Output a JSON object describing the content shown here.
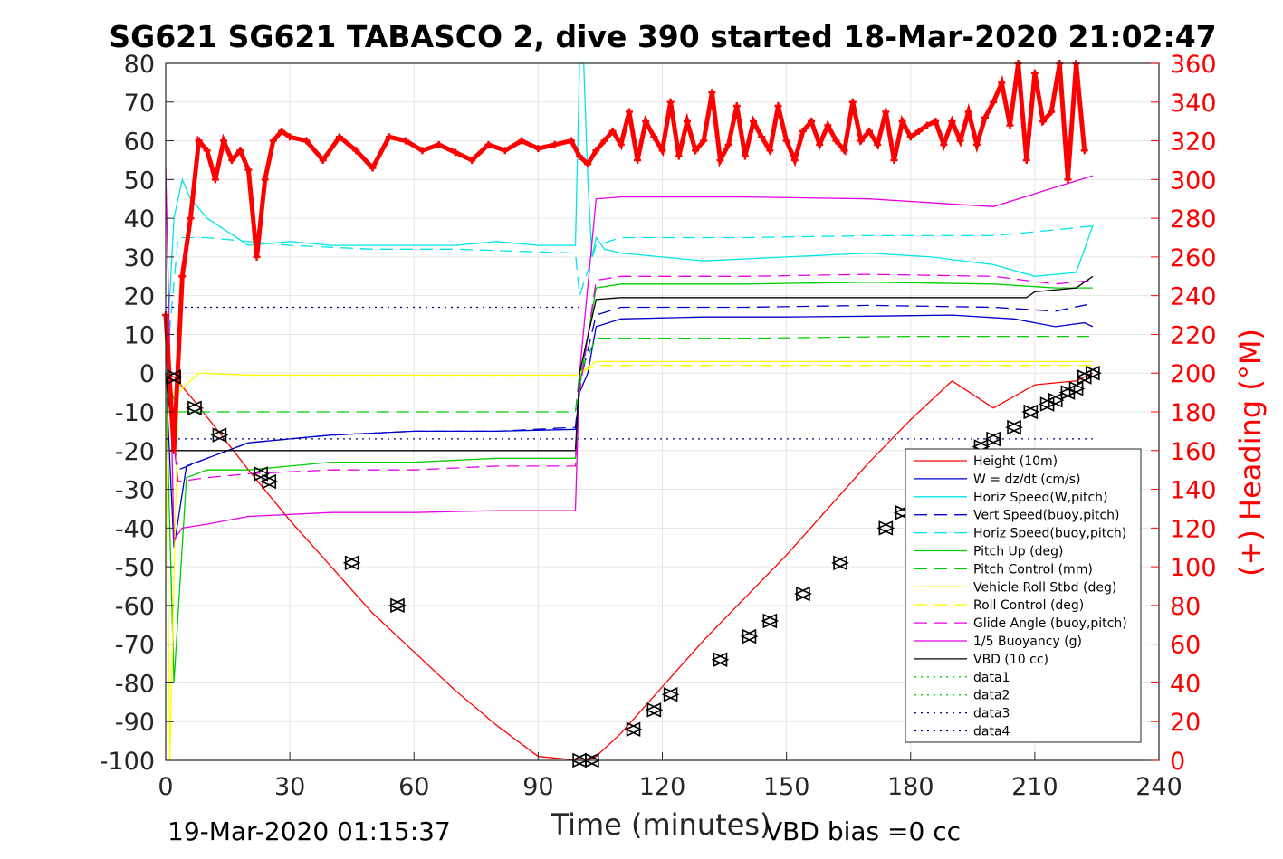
{
  "chart_data": {
    "type": "line",
    "title": "SG621 SG621 TABASCO 2, dive 390 started 18-Mar-2020 21:02:47",
    "xlabel": "Time (minutes)",
    "ylabel_right": "(+) Heading (°M)",
    "footer_left": "19-Mar-2020 01:15:37",
    "footer_right": "VBD bias =0 cc",
    "xlim": [
      0,
      240
    ],
    "ylim_left": [
      -100,
      80
    ],
    "ylim_right": [
      0,
      360
    ],
    "x_ticks": [
      "0",
      "30",
      "60",
      "90",
      "120",
      "150",
      "180",
      "210",
      "240"
    ],
    "y_ticks_left": [
      "80",
      "70",
      "60",
      "50",
      "40",
      "30",
      "20",
      "10",
      "0",
      "-10",
      "-20",
      "-30",
      "-40",
      "-50",
      "-60",
      "-70",
      "-80",
      "-90",
      "-100"
    ],
    "y_ticks_right": [
      "360",
      "340",
      "320",
      "300",
      "280",
      "260",
      "240",
      "220",
      "200",
      "180",
      "160",
      "140",
      "120",
      "100",
      "80",
      "60",
      "40",
      "20",
      "0"
    ],
    "grid": true,
    "legend_placement": "bottom-right",
    "colors": {
      "red": "#ff0000",
      "blue": "#0000cc",
      "cyan": "#00e5e5",
      "green": "#00cc00",
      "yellow": "#ffff00",
      "magenta": "#e500e5",
      "black": "#000000",
      "navy": "#000080"
    },
    "series": [
      {
        "name": "Height (10m)",
        "color": "#ff0000",
        "style": "solid",
        "x": [
          0,
          2,
          6,
          12,
          20,
          30,
          40,
          50,
          60,
          70,
          80,
          90,
          100,
          102,
          104,
          110,
          120,
          130,
          140,
          150,
          160,
          170,
          180,
          190,
          200,
          210,
          220,
          224
        ],
        "y": [
          0,
          -1,
          -6,
          -14,
          -25,
          -38,
          -50,
          -62,
          -72,
          -82,
          -91,
          -99,
          -100,
          -100,
          -99,
          -93,
          -81,
          -69,
          -58,
          -47,
          -35,
          -23,
          -12,
          -2,
          -9,
          -3,
          -2,
          0
        ]
      },
      {
        "name": "W = dz/dt (cm/s)",
        "color": "#0000cc",
        "style": "solid",
        "x": [
          0,
          2,
          5,
          10,
          20,
          30,
          40,
          60,
          80,
          99,
          100,
          102,
          104,
          110,
          130,
          150,
          170,
          190,
          205,
          215,
          222,
          224
        ],
        "y": [
          0,
          -45,
          -24,
          -22,
          -18,
          -17,
          -16,
          -15,
          -15,
          -14.5,
          -5,
          0,
          12,
          14,
          14.5,
          14.5,
          14.7,
          15,
          14,
          12,
          13,
          12
        ]
      },
      {
        "name": "Horiz Speed(W,pitch)",
        "color": "#00e5e5",
        "style": "solid",
        "x": [
          0,
          2,
          4,
          6,
          10,
          20,
          30,
          40,
          50,
          60,
          70,
          80,
          90,
          99,
          100,
          101,
          102,
          103,
          104,
          106,
          110,
          130,
          150,
          170,
          185,
          200,
          210,
          220,
          224
        ],
        "y": [
          0,
          40,
          50,
          45,
          40,
          33,
          34,
          33,
          33,
          33,
          33,
          34,
          33,
          33,
          80,
          80,
          50,
          30,
          35,
          32,
          31,
          29,
          30,
          31,
          30,
          28,
          25,
          26,
          38
        ]
      },
      {
        "name": "Vert Speed(buoy,pitch)",
        "color": "#0000cc",
        "style": "dash",
        "x": [
          0,
          3,
          10,
          20,
          40,
          60,
          80,
          99,
          100,
          104,
          110,
          140,
          170,
          200,
          215,
          224
        ],
        "y": [
          0,
          -25,
          -22,
          -18,
          -16,
          -15,
          -15,
          -14,
          -3,
          15,
          17,
          17,
          17.5,
          17,
          16,
          18
        ]
      },
      {
        "name": "Horiz Speed(buoy,pitch)",
        "color": "#00e5e5",
        "style": "dash",
        "x": [
          0,
          3,
          10,
          30,
          50,
          70,
          99,
          100,
          104,
          110,
          140,
          170,
          200,
          215,
          224
        ],
        "y": [
          0,
          35,
          35,
          33,
          32,
          32,
          31,
          20,
          33,
          35,
          35,
          35.5,
          35.5,
          37,
          38
        ]
      },
      {
        "name": "Pitch Up (deg)",
        "color": "#00cc00",
        "style": "solid",
        "x": [
          0,
          2,
          5,
          10,
          20,
          30,
          40,
          60,
          80,
          99,
          100,
          104,
          110,
          140,
          170,
          200,
          215,
          224
        ],
        "y": [
          0,
          -80,
          -27,
          -25,
          -25,
          -24,
          -23,
          -23,
          -22,
          -22,
          -3,
          22,
          23,
          23,
          23.5,
          23,
          22,
          22
        ]
      },
      {
        "name": "Pitch Control (mm)",
        "color": "#00cc00",
        "style": "dash",
        "x": [
          0,
          3,
          30,
          60,
          99,
          100,
          104,
          140,
          180,
          224
        ],
        "y": [
          0,
          -10,
          -10,
          -10,
          -10,
          0,
          9,
          9,
          9.5,
          9.5
        ]
      },
      {
        "name": "Vehicle Roll Stbd (deg)",
        "color": "#ffff00",
        "style": "solid",
        "x": [
          0,
          1,
          3,
          8,
          20,
          40,
          60,
          80,
          99,
          100,
          104,
          110,
          130,
          150,
          170,
          190,
          210,
          224
        ],
        "y": [
          0,
          -100,
          -5,
          0,
          -0.5,
          -0.5,
          -0.5,
          -0.5,
          -0.5,
          0,
          3,
          3,
          3,
          3,
          3,
          3,
          3,
          3
        ]
      },
      {
        "name": "Roll Control (deg)",
        "color": "#ffff00",
        "style": "dash",
        "x": [
          0,
          2,
          5,
          20,
          40,
          60,
          80,
          99,
          100,
          104,
          140,
          180,
          224
        ],
        "y": [
          0,
          -5,
          -1,
          -1,
          -1,
          -1,
          -1,
          -1,
          0,
          2,
          2,
          2,
          2
        ]
      },
      {
        "name": "Glide Angle (buoy,pitch)",
        "color": "#e500e5",
        "style": "dash",
        "x": [
          0,
          3,
          10,
          20,
          40,
          60,
          80,
          99,
          100,
          104,
          110,
          140,
          170,
          200,
          215,
          224
        ],
        "y": [
          0,
          -28,
          -27,
          -26,
          -25,
          -25,
          -24,
          -24,
          -5,
          24,
          25,
          25,
          25.5,
          25,
          23,
          24
        ]
      },
      {
        "name": "1/5 Buoyancy (g)",
        "color": "#e500e5",
        "style": "solid",
        "x": [
          0,
          2,
          4,
          10,
          20,
          40,
          60,
          80,
          99,
          100,
          104,
          110,
          140,
          170,
          200,
          215,
          224
        ],
        "y": [
          53,
          -43,
          -40,
          -39,
          -37,
          -36,
          -36,
          -35.5,
          -35.5,
          0,
          45,
          45.5,
          45.5,
          45,
          43,
          48,
          51
        ]
      },
      {
        "name": "VBD (10 cc)",
        "color": "#000000",
        "style": "solid",
        "x": [
          0,
          2,
          4,
          99,
          100,
          104,
          110,
          140,
          170,
          200,
          208,
          210,
          220,
          224
        ],
        "y": [
          0,
          -20,
          -20,
          -20,
          0,
          19,
          19.5,
          19.5,
          19.5,
          19.5,
          19.5,
          21,
          22,
          25
        ]
      },
      {
        "name": "data1",
        "color": "#00cc00",
        "style": "dot",
        "x": [],
        "y": []
      },
      {
        "name": "data2",
        "color": "#00cc00",
        "style": "dot",
        "x": [],
        "y": []
      },
      {
        "name": "data3",
        "color": "#000080",
        "style": "dot",
        "x": [
          0,
          100
        ],
        "y": [
          17,
          17
        ]
      },
      {
        "name": "data4",
        "color": "#000080",
        "style": "dot",
        "x": [
          0,
          224
        ],
        "y": [
          -17,
          -17
        ]
      }
    ],
    "heading_series": {
      "name": "(+) Heading (°M)",
      "color": "#ff0000",
      "axis": "right",
      "x": [
        0,
        2,
        4,
        6,
        8,
        10,
        12,
        14,
        16,
        18,
        20,
        22,
        24,
        26,
        28,
        30,
        34,
        38,
        42,
        46,
        50,
        54,
        58,
        62,
        66,
        70,
        74,
        78,
        82,
        86,
        90,
        94,
        98,
        100,
        102,
        104,
        106,
        108,
        110,
        112,
        114,
        116,
        118,
        120,
        122,
        124,
        126,
        128,
        130,
        132,
        134,
        136,
        138,
        140,
        142,
        144,
        146,
        148,
        150,
        152,
        154,
        156,
        158,
        160,
        162,
        164,
        166,
        168,
        170,
        172,
        174,
        176,
        178,
        180,
        182,
        184,
        186,
        188,
        190,
        192,
        194,
        196,
        198,
        200,
        202,
        204,
        206,
        208,
        210,
        212,
        214,
        216,
        218,
        220,
        222
      ],
      "y": [
        230,
        160,
        250,
        280,
        320,
        315,
        300,
        320,
        310,
        315,
        305,
        260,
        300,
        320,
        325,
        322,
        320,
        310,
        322,
        315,
        306,
        322,
        320,
        315,
        318,
        314,
        310,
        318,
        315,
        320,
        316,
        318,
        320,
        312,
        308,
        315,
        320,
        325,
        318,
        335,
        310,
        330,
        322,
        315,
        340,
        312,
        330,
        315,
        320,
        345,
        310,
        318,
        338,
        312,
        330,
        322,
        315,
        338,
        320,
        310,
        325,
        330,
        318,
        328,
        320,
        315,
        340,
        320,
        325,
        318,
        335,
        310,
        330,
        322,
        325,
        328,
        330,
        318,
        330,
        320,
        335,
        318,
        332,
        340,
        350,
        328,
        360,
        310,
        355,
        330,
        335,
        360,
        300,
        360,
        315
      ]
    },
    "position_markers": {
      "note": "triangle markers along the depth trace",
      "x": [
        2,
        7,
        13,
        23,
        25,
        45,
        56,
        100,
        103,
        113,
        118,
        122,
        134,
        141,
        146,
        154,
        163,
        174,
        178,
        197,
        200,
        205,
        209,
        213,
        215,
        218,
        220,
        222,
        224
      ],
      "y": [
        -1,
        -9,
        -16,
        -26,
        -28,
        -49,
        -60,
        -100,
        -100,
        -92,
        -87,
        -83,
        -74,
        -68,
        -64,
        -57,
        -49,
        -40,
        -36,
        -19,
        -17,
        -14,
        -10,
        -8,
        -7,
        -5,
        -4,
        -1,
        0
      ]
    }
  }
}
